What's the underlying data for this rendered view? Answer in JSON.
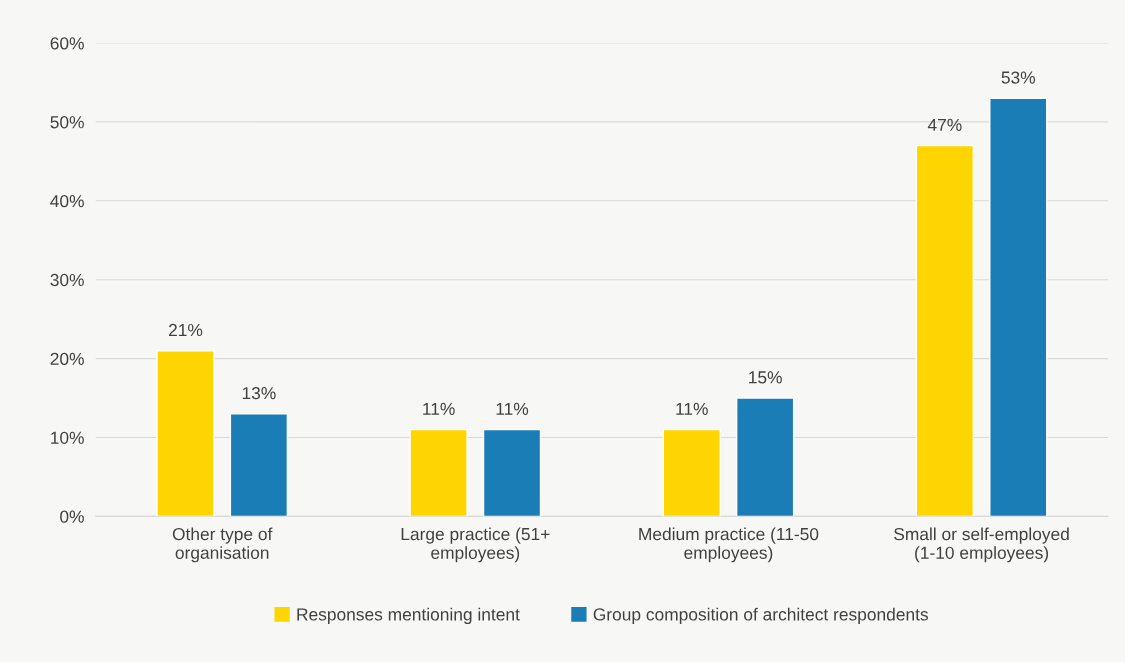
{
  "chart_data": {
    "type": "bar",
    "categories": [
      "Other type of\norganisation",
      "Large practice (51+\nemployees)",
      "Medium practice (11-50\nemployees)",
      "Small or self-employed\n(1-10 employees)"
    ],
    "series": [
      {
        "name": "Responses mentioning intent",
        "color": "#ffd500",
        "values": [
          21,
          11,
          11,
          47
        ],
        "value_labels": [
          "21%",
          "11%",
          "11%",
          "47%"
        ]
      },
      {
        "name": "Group composition of architect respondents",
        "color": "#1a7db5",
        "values": [
          13,
          11,
          15,
          53
        ],
        "value_labels": [
          "13%",
          "11%",
          "15%",
          "53%"
        ]
      }
    ],
    "ylim": [
      0,
      60
    ],
    "yticks": [
      {
        "value": 0,
        "label": "0%"
      },
      {
        "value": 10,
        "label": "10%"
      },
      {
        "value": 20,
        "label": "20%"
      },
      {
        "value": 30,
        "label": "30%"
      },
      {
        "value": 40,
        "label": "40%"
      },
      {
        "value": 50,
        "label": "50%"
      },
      {
        "value": 60,
        "label": "60%"
      }
    ],
    "grid": "y",
    "legend": "bottom"
  }
}
